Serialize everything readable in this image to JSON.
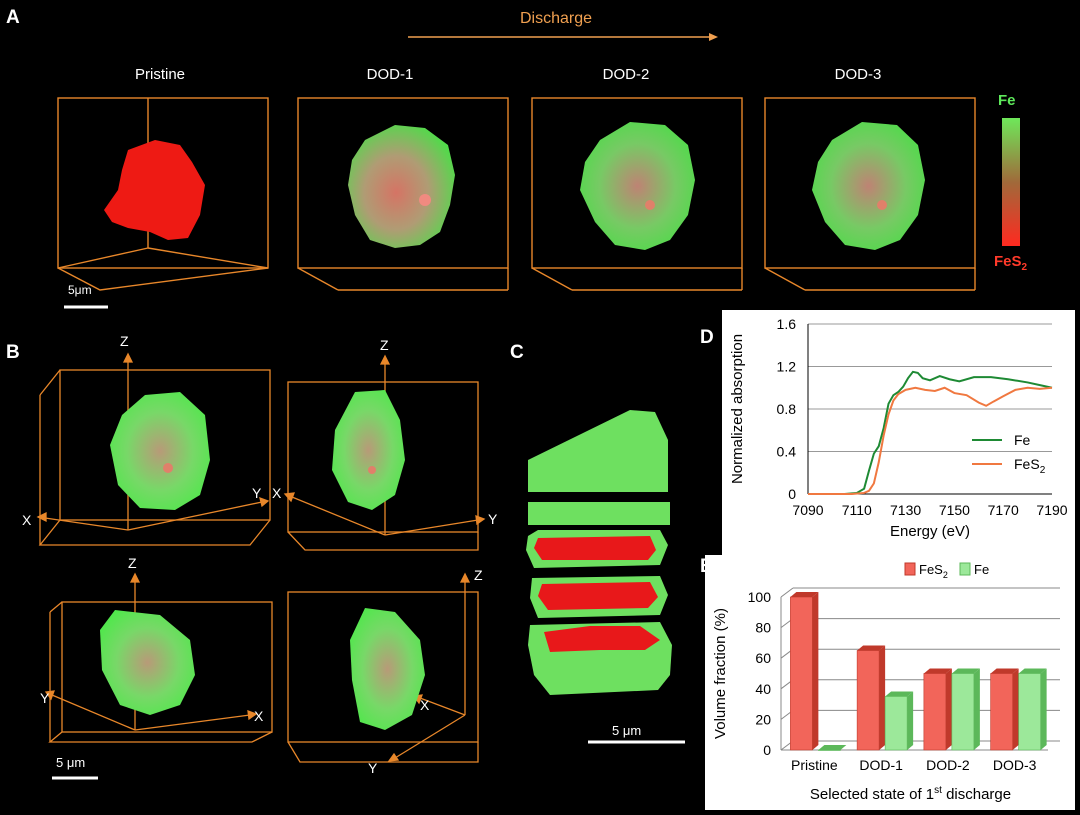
{
  "panel_a": {
    "letter": "A",
    "discharge_label": "Discharge",
    "titles": [
      "Pristine",
      "DOD-1",
      "DOD-2",
      "DOD-3"
    ],
    "scale": "5μm",
    "colorbar_top": "Fe",
    "colorbar_bottom": "FeS",
    "colorbar_bottom_sub": "2"
  },
  "panel_b": {
    "letter": "B",
    "axes": {
      "z": "Z",
      "x": "X",
      "y": "Y"
    },
    "scale": "5 μm"
  },
  "panel_c": {
    "letter": "C",
    "scale": "5 μm"
  },
  "panel_d": {
    "letter": "D",
    "colors": {
      "fe": "#1e8a34",
      "fes2": "#f07840"
    }
  },
  "panel_e": {
    "letter": "E",
    "colors": {
      "fes2": "#f2655a",
      "fe": "#9ce89a"
    }
  },
  "chart_data": [
    {
      "type": "line",
      "xlabel": "Energy (eV)",
      "ylabel": "Normalized absorption",
      "xlim": [
        7090,
        7190
      ],
      "ylim": [
        0,
        1.6
      ],
      "xticks": [
        "7090",
        "7110",
        "7130",
        "7150",
        "7170",
        "7190"
      ],
      "yticks": [
        "0",
        "0.4",
        "0.8",
        "1.2",
        "1.6"
      ],
      "grid": true,
      "legend_position": "bottom-right",
      "series": [
        {
          "name": "Fe",
          "name_sub": "",
          "x": [
            7090,
            7105,
            7110,
            7113,
            7115,
            7117,
            7119,
            7121,
            7123,
            7125,
            7127,
            7129,
            7131,
            7133,
            7135,
            7137,
            7140,
            7144,
            7148,
            7152,
            7158,
            7165,
            7172,
            7180,
            7186,
            7190
          ],
          "y": [
            0,
            0,
            0.01,
            0.05,
            0.22,
            0.38,
            0.45,
            0.62,
            0.85,
            0.93,
            0.96,
            1.01,
            1.09,
            1.15,
            1.14,
            1.09,
            1.07,
            1.11,
            1.08,
            1.06,
            1.1,
            1.1,
            1.08,
            1.05,
            1.02,
            1.0
          ]
        },
        {
          "name": "FeS",
          "name_sub": "2",
          "x": [
            7090,
            7108,
            7113,
            7115,
            7117,
            7119,
            7121,
            7123,
            7125,
            7127,
            7130,
            7134,
            7138,
            7142,
            7146,
            7150,
            7155,
            7160,
            7163,
            7166,
            7170,
            7175,
            7180,
            7185,
            7190
          ],
          "y": [
            0,
            0,
            0.01,
            0.03,
            0.1,
            0.3,
            0.55,
            0.75,
            0.88,
            0.94,
            0.98,
            1.0,
            0.98,
            0.97,
            1.0,
            0.95,
            0.93,
            0.86,
            0.83,
            0.87,
            0.92,
            0.98,
            1.0,
            0.99,
            1.0
          ]
        }
      ]
    },
    {
      "type": "bar",
      "xlabel": "Selected state of 1",
      "xlabel_sup": "st",
      "xlabel_tail": " discharge",
      "ylabel": "Volume fraction (%)",
      "ylim": [
        0,
        100
      ],
      "yticks": [
        "0",
        "20",
        "40",
        "60",
        "80",
        "100"
      ],
      "grid": true,
      "legend_position": "top-right",
      "categories": [
        "Pristine",
        "DOD-1",
        "DOD-2",
        "DOD-3"
      ],
      "series": [
        {
          "name": "FeS",
          "name_sub": "2",
          "values": [
            100,
            65,
            50,
            50
          ]
        },
        {
          "name": "Fe",
          "name_sub": "",
          "values": [
            0,
            35,
            50,
            50
          ]
        }
      ]
    }
  ]
}
